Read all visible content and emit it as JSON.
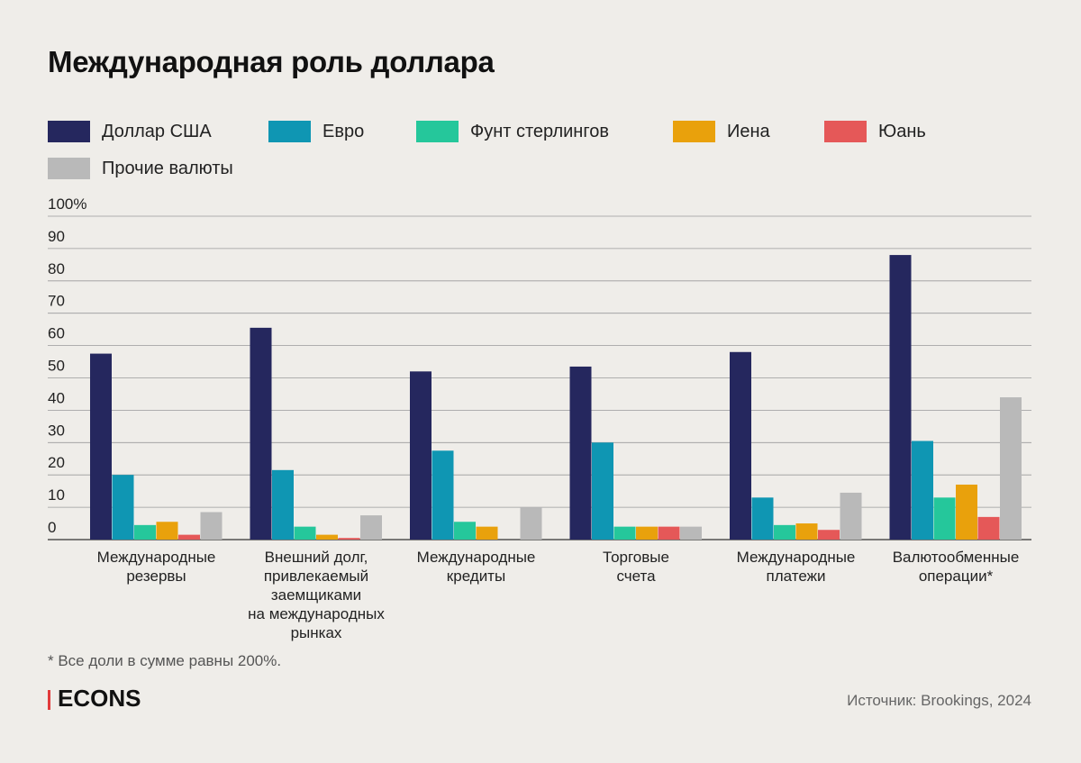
{
  "title": "Международная роль доллара",
  "legend": [
    {
      "label": "Доллар США",
      "color": "#25275e"
    },
    {
      "label": "Евро",
      "color": "#0f96b3"
    },
    {
      "label": "Фунт стерлингов",
      "color": "#25c79b"
    },
    {
      "label": "Иена",
      "color": "#e9a10c"
    },
    {
      "label": "Юань",
      "color": "#e55858"
    },
    {
      "label": "Прочие валюты",
      "color": "#b9b9b9"
    }
  ],
  "footnote": "* Все доли в сумме равны 200%.",
  "brand": "ECONS",
  "source": "Источник: Brookings, 2024",
  "chart_data": {
    "type": "bar",
    "ylim": [
      0,
      100
    ],
    "yticks": [
      "100%",
      "90",
      "80",
      "70",
      "60",
      "50",
      "40",
      "30",
      "20",
      "10",
      "0"
    ],
    "grid": true,
    "legend_placement": "top",
    "categories": [
      [
        "Международные",
        "резервы"
      ],
      [
        "Внешний долг,",
        "привлекаемый",
        "заемщиками",
        "на международных",
        "рынках"
      ],
      [
        "Международные",
        "кредиты"
      ],
      [
        "Торговые",
        "счета"
      ],
      [
        "Международные",
        "платежи"
      ],
      [
        "Валютообменные",
        "операции*"
      ]
    ],
    "series": [
      {
        "name": "Доллар США",
        "color": "#25275e",
        "values": [
          57.5,
          65.5,
          52,
          53.5,
          58,
          88
        ]
      },
      {
        "name": "Евро",
        "color": "#0f96b3",
        "values": [
          20,
          21.5,
          27.5,
          30,
          13,
          30.5
        ]
      },
      {
        "name": "Фунт стерлингов",
        "color": "#25c79b",
        "values": [
          4.5,
          4,
          5.5,
          4,
          4.5,
          13
        ]
      },
      {
        "name": "Иена",
        "color": "#e9a10c",
        "values": [
          5.5,
          1.5,
          4,
          4,
          5,
          17
        ]
      },
      {
        "name": "Юань",
        "color": "#e55858",
        "values": [
          1.5,
          0.5,
          0,
          4,
          3,
          7
        ]
      },
      {
        "name": "Прочие валюты",
        "color": "#b9b9b9",
        "values": [
          8.5,
          7.5,
          10,
          4,
          14.5,
          44
        ]
      }
    ]
  }
}
